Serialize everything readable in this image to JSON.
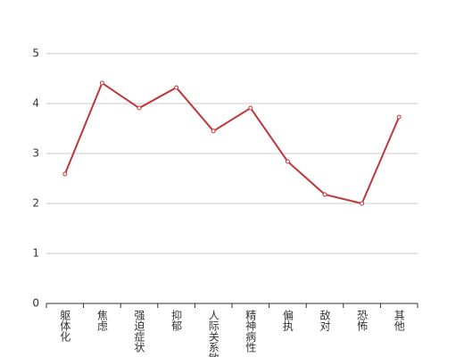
{
  "chart_data": {
    "type": "line",
    "categories": [
      "躯体化",
      "焦虑",
      "强迫症状",
      "抑郁",
      "人际关系敏感",
      "精神病性",
      "偏执",
      "敌对",
      "恐怖",
      "其他"
    ],
    "values": [
      2.59,
      4.41,
      3.91,
      4.32,
      3.45,
      3.91,
      2.84,
      2.18,
      2.0,
      3.73
    ],
    "color": "#c0363a",
    "ylim": [
      0,
      5
    ],
    "yticks": [
      0,
      1,
      2,
      3,
      4,
      5
    ],
    "grid": true
  }
}
